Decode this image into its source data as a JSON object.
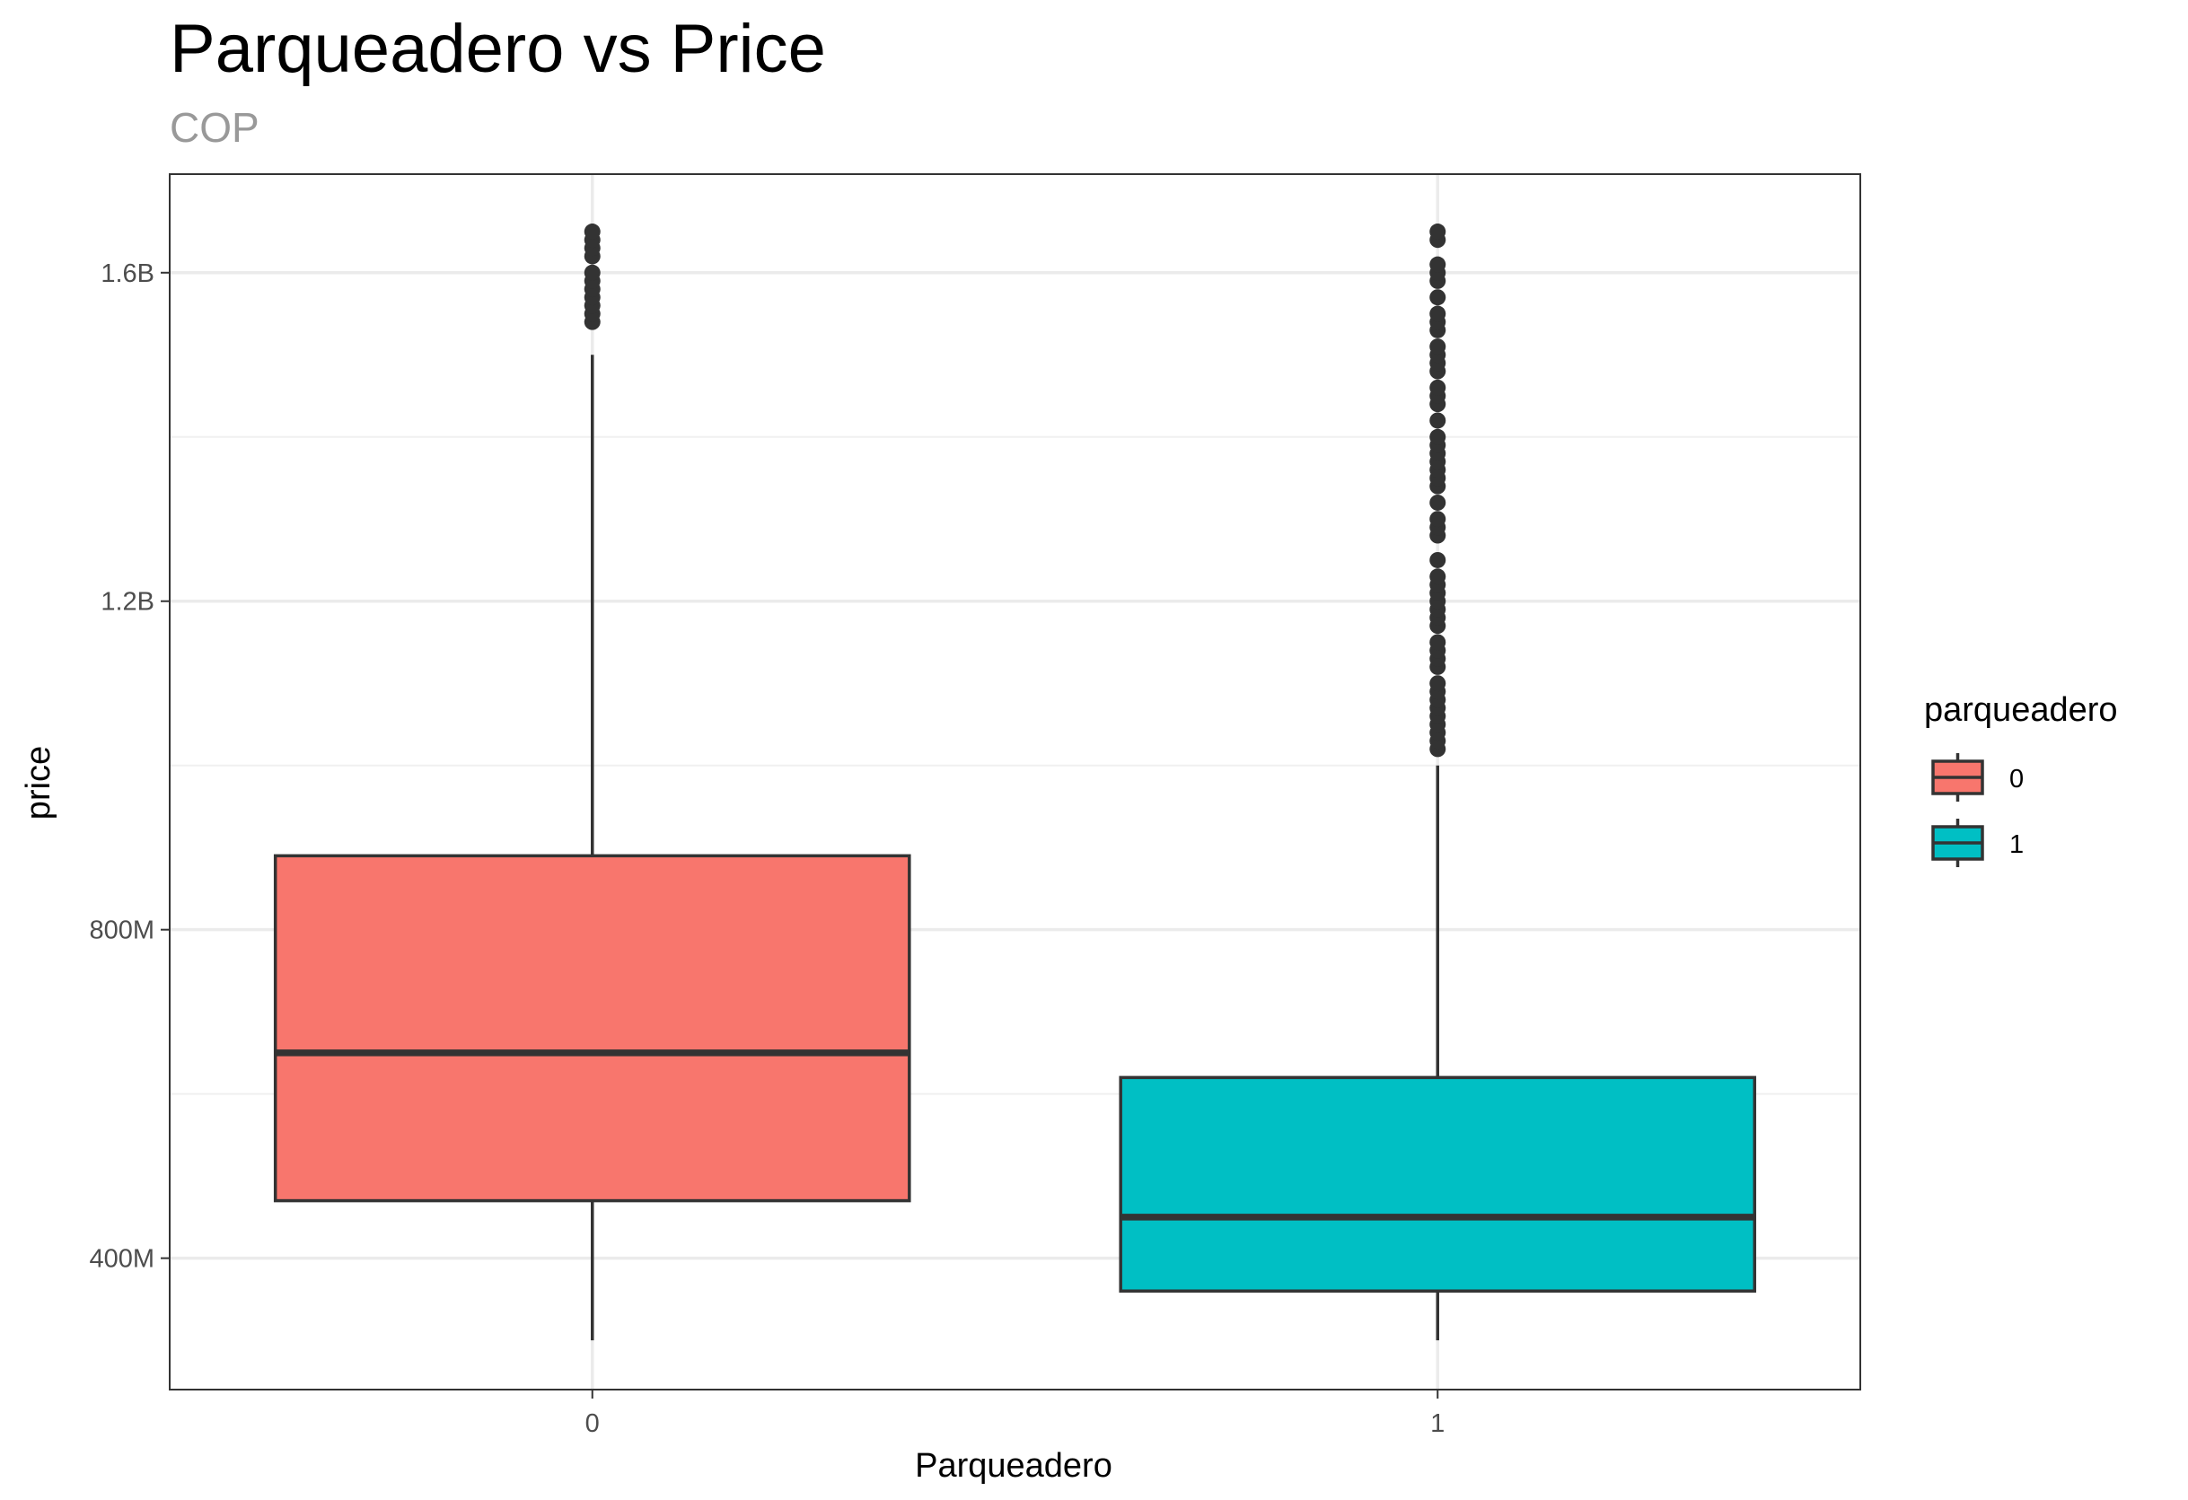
{
  "chart_data": {
    "type": "boxplot",
    "title": "Parqueadero vs Price",
    "subtitle": "COP",
    "xlabel": "Parqueadero",
    "ylabel": "price",
    "categories": [
      "0",
      "1"
    ],
    "ylim": [
      240000000,
      1720000000
    ],
    "yticks": [
      {
        "value": 400000000,
        "label": "400M"
      },
      {
        "value": 800000000,
        "label": "800M"
      },
      {
        "value": 1200000000,
        "label": "1.2B"
      },
      {
        "value": 1600000000,
        "label": "1.6B"
      }
    ],
    "y_minor_ticks": [
      600000000,
      1000000000,
      1400000000
    ],
    "grid": true,
    "legend": {
      "title": "parqueadero",
      "position": "right",
      "entries": [
        {
          "label": "0",
          "color": "#F8766D"
        },
        {
          "label": "1",
          "color": "#00BFC4"
        }
      ]
    },
    "series": [
      {
        "category": "0",
        "color": "#F8766D",
        "min": 300000000,
        "q1": 470000000,
        "median": 650000000,
        "q3": 890000000,
        "max": 1500000000,
        "outliers": [
          1540000000,
          1550000000,
          1560000000,
          1570000000,
          1580000000,
          1590000000,
          1600000000,
          1620000000,
          1630000000,
          1640000000,
          1650000000
        ]
      },
      {
        "category": "1",
        "color": "#00BFC4",
        "min": 300000000,
        "q1": 360000000,
        "median": 450000000,
        "q3": 620000000,
        "max": 1000000000,
        "outliers": [
          1020000000,
          1030000000,
          1040000000,
          1050000000,
          1060000000,
          1070000000,
          1080000000,
          1090000000,
          1100000000,
          1120000000,
          1130000000,
          1140000000,
          1150000000,
          1170000000,
          1180000000,
          1190000000,
          1200000000,
          1210000000,
          1220000000,
          1230000000,
          1250000000,
          1280000000,
          1290000000,
          1300000000,
          1320000000,
          1340000000,
          1350000000,
          1360000000,
          1370000000,
          1380000000,
          1390000000,
          1400000000,
          1420000000,
          1440000000,
          1450000000,
          1460000000,
          1480000000,
          1490000000,
          1500000000,
          1510000000,
          1530000000,
          1540000000,
          1550000000,
          1570000000,
          1590000000,
          1600000000,
          1610000000,
          1640000000,
          1650000000
        ]
      }
    ]
  }
}
